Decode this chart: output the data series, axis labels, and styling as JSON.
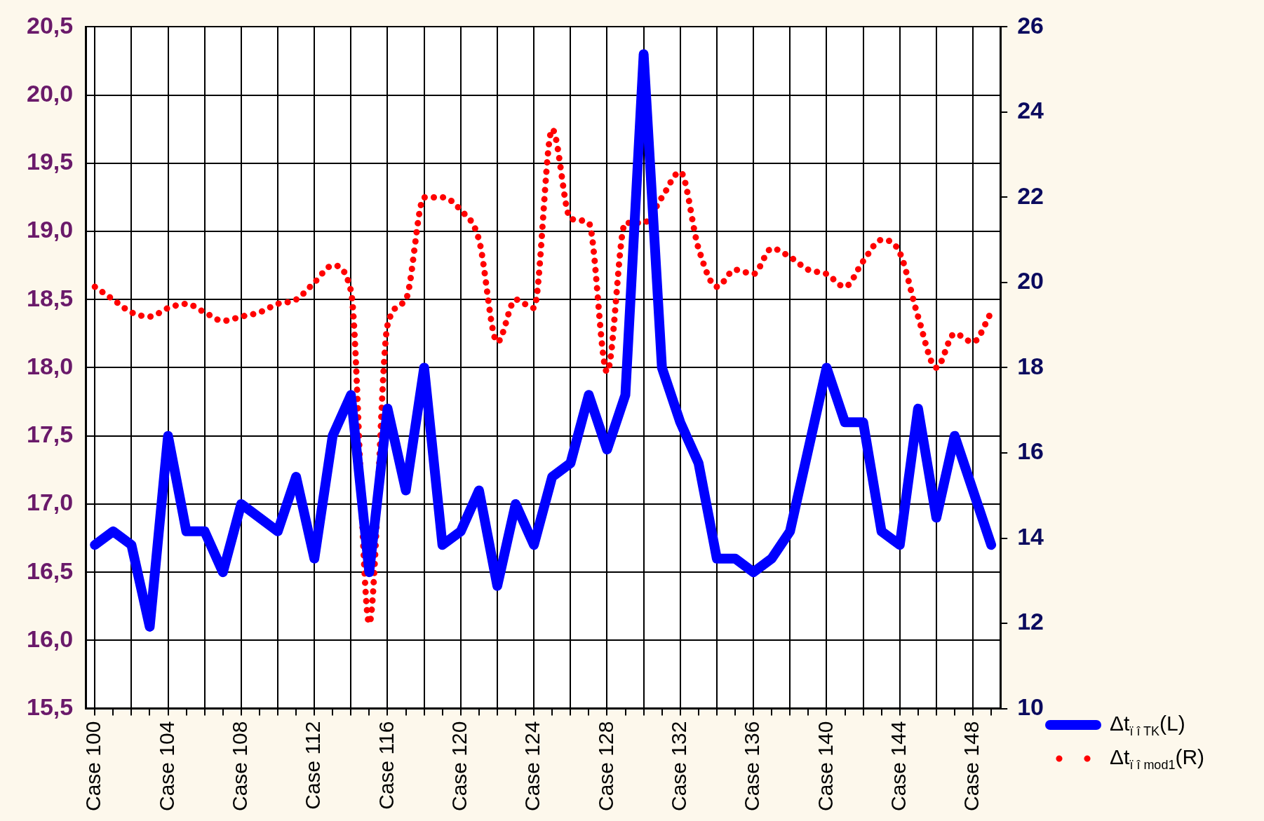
{
  "chart_data": {
    "type": "line",
    "categories": [
      "Case 100",
      null,
      null,
      null,
      "Case 104",
      null,
      null,
      null,
      "Case 108",
      null,
      null,
      null,
      "Case 112",
      null,
      null,
      null,
      "Case 116",
      null,
      null,
      null,
      "Case 120",
      null,
      null,
      null,
      "Case 124",
      null,
      null,
      null,
      "Case 128",
      null,
      null,
      null,
      "Case 132",
      null,
      null,
      null,
      "Case 136",
      null,
      null,
      null,
      "Case 140",
      null,
      null,
      null,
      "Case 144",
      null,
      null,
      null,
      "Case 148",
      null
    ],
    "series": [
      {
        "name": "Δt$_{ï î  TK}$(L)",
        "color": "#0000ff",
        "line_style": "solid",
        "values": [
          16.7,
          16.8,
          16.7,
          16.1,
          17.5,
          16.8,
          16.8,
          16.5,
          17.0,
          16.9,
          16.8,
          17.2,
          16.6,
          17.5,
          17.8,
          16.5,
          17.7,
          17.1,
          18.0,
          16.7,
          16.8,
          17.1,
          16.4,
          17.0,
          16.7,
          17.2,
          17.3,
          17.8,
          17.4,
          17.8,
          20.3,
          18.0,
          17.6,
          17.3,
          16.6,
          16.6,
          16.5,
          16.6,
          16.8,
          17.4,
          18.0,
          17.6,
          17.6,
          16.8,
          16.7,
          17.7,
          16.9,
          17.5,
          17.1,
          16.7
        ]
      },
      {
        "name": "Δt$_{ï î  mod1}$(R)",
        "color": "#ff0000",
        "line_style": "dotted",
        "axis": "y2",
        "values": [
          19.9,
          19.6,
          19.3,
          19.2,
          19.4,
          19.5,
          19.3,
          19.1,
          19.2,
          19.3,
          19.5,
          19.6,
          20.0,
          20.4,
          19.8,
          12.0,
          19.0,
          19.6,
          22.0,
          22.0,
          21.7,
          21.0,
          18.6,
          19.6,
          19.4,
          23.6,
          21.5,
          21.4,
          17.9,
          21.4,
          21.4,
          22.0,
          22.6,
          20.8,
          19.9,
          20.3,
          20.2,
          20.8,
          20.6,
          20.3,
          20.2,
          19.9,
          20.5,
          21.0,
          20.7,
          19.2,
          18.0,
          18.8,
          18.6,
          19.3
        ]
      }
    ],
    "ylim": [
      15.5,
      20.5
    ],
    "yticks": [
      {
        "value": 15.5,
        "label": "15,5"
      },
      {
        "value": 16,
        "label": "16,0"
      },
      {
        "value": 16.5,
        "label": "16,5"
      },
      {
        "value": 17,
        "label": "17,0"
      },
      {
        "value": 17.5,
        "label": "17,5"
      },
      {
        "value": 18,
        "label": "18,0"
      },
      {
        "value": 18.5,
        "label": "18,5"
      },
      {
        "value": 19,
        "label": "19,0"
      },
      {
        "value": 19.5,
        "label": "19,5"
      },
      {
        "value": 20,
        "label": "20,0"
      },
      {
        "value": 20.5,
        "label": "20,5"
      }
    ],
    "y2lim": [
      10,
      26
    ],
    "y2ticks": [
      10,
      12,
      14,
      16,
      18,
      20,
      22,
      24,
      26
    ],
    "grid": true,
    "legend": "bottom right",
    "marker": "none"
  }
}
